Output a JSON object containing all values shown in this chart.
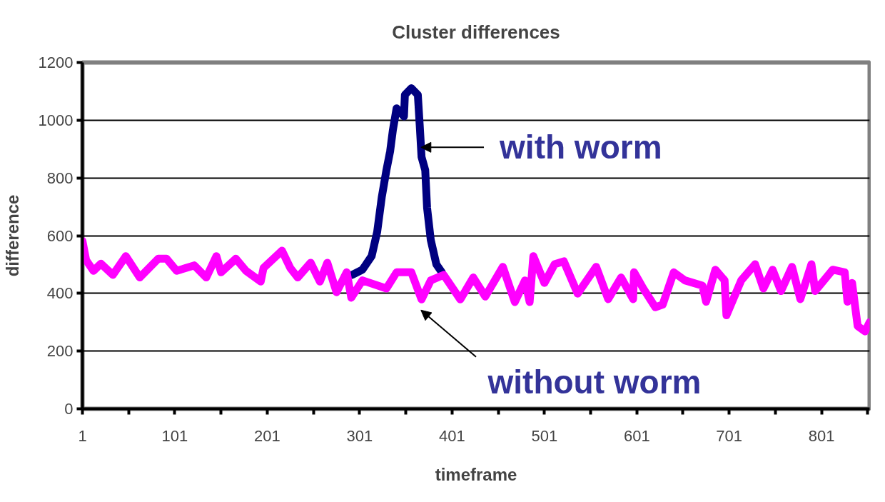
{
  "chart_data": {
    "type": "line",
    "title": "Cluster differences",
    "xlabel": "timeframe",
    "ylabel": "difference",
    "xlim": [
      1,
      853
    ],
    "xticks": [
      1,
      {
        "value": 51,
        "label": null
      },
      101,
      {
        "value": 151,
        "label": null
      },
      201,
      {
        "value": 251,
        "label": null
      },
      301,
      {
        "value": 351,
        "label": null
      },
      401,
      {
        "value": 451,
        "label": null
      },
      501,
      {
        "value": 551,
        "label": null
      },
      601,
      {
        "value": 651,
        "label": null
      },
      701,
      {
        "value": 751,
        "label": null
      },
      801,
      {
        "value": 851,
        "label": null
      }
    ],
    "ylim": [
      0,
      1200
    ],
    "yticks": [
      0,
      200,
      400,
      600,
      800,
      1000,
      1200
    ],
    "grid": "y",
    "marker": "none",
    "line_style": "solid",
    "series": [
      {
        "name": "with worm",
        "color": "#000080",
        "x": [
          293,
          304,
          314,
          320,
          325,
          330,
          334,
          337,
          341,
          349,
          350,
          357,
          364,
          366,
          368,
          372,
          374,
          378,
          384,
          390
        ],
        "values": [
          464,
          482,
          529,
          613,
          734,
          827,
          892,
          966,
          1041,
          1013,
          1088,
          1111,
          1088,
          985,
          873,
          827,
          697,
          585,
          501,
          473
        ]
      },
      {
        "name": "without worm",
        "color": "#ff00ff",
        "x": [
          1,
          5,
          13,
          21,
          34,
          48,
          63,
          83,
          92,
          103,
          122,
          135,
          146,
          151,
          167,
          178,
          194,
          197,
          217,
          226,
          234,
          248,
          258,
          266,
          276,
          287,
          292,
          304,
          330,
          341,
          357,
          368,
          378,
          392,
          410,
          424,
          437,
          456,
          469,
          480,
          485,
          489,
          501,
          512,
          522,
          537,
          557,
          570,
          584,
          597,
          598,
          608,
          621,
          629,
          641,
          653,
          672,
          676,
          686,
          696,
          698,
          714,
          729,
          738,
          748,
          757,
          769,
          778,
          790,
          794,
          813,
          826,
          829,
          834,
          840,
          848,
          853
        ],
        "values": [
          582,
          515,
          478,
          503,
          464,
          529,
          455,
          520,
          520,
          478,
          497,
          455,
          529,
          473,
          520,
          478,
          441,
          488,
          548,
          488,
          455,
          506,
          441,
          506,
          404,
          473,
          385,
          445,
          417,
          473,
          473,
          379,
          445,
          464,
          379,
          455,
          389,
          492,
          370,
          445,
          370,
          529,
          436,
          501,
          511,
          399,
          492,
          380,
          455,
          380,
          473,
          417,
          352,
          361,
          473,
          445,
          427,
          371,
          482,
          445,
          324,
          445,
          501,
          417,
          482,
          408,
          492,
          380,
          501,
          408,
          482,
          473,
          371,
          436,
          287,
          268,
          300
        ]
      }
    ]
  }
}
